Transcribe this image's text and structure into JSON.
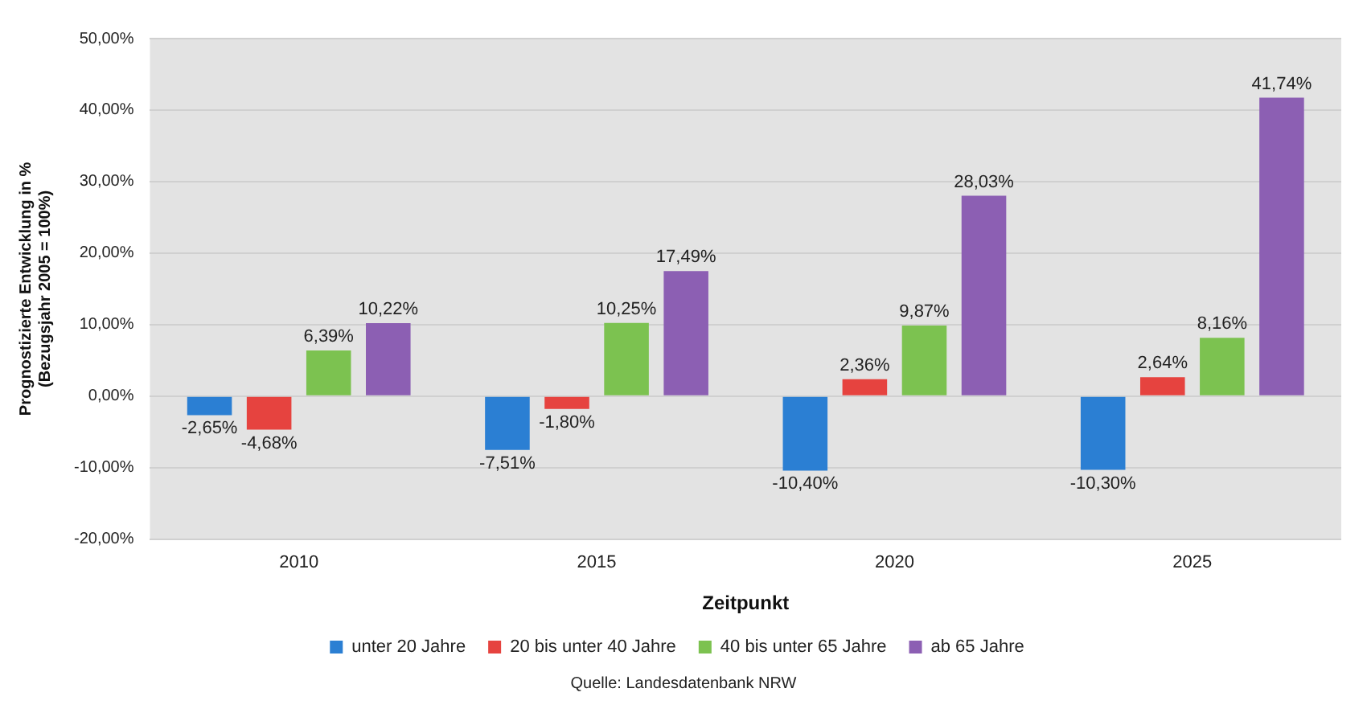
{
  "chart_data": {
    "type": "bar",
    "xlabel": "Zeitpunkt",
    "ylabel": "Prognostizierte Entwicklung in %\n(Bezugsjahr 2005 = 100%)",
    "categories": [
      "2010",
      "2015",
      "2020",
      "2025"
    ],
    "series": [
      {
        "name": "unter 20 Jahre",
        "color": "#2b7fd3",
        "values": [
          -2.65,
          -7.51,
          -10.4,
          -10.3
        ],
        "value_labels": [
          "-2,65%",
          "-7,51%",
          "-10,40%",
          "-10,30%"
        ]
      },
      {
        "name": "20 bis unter 40 Jahre",
        "color": "#e6433f",
        "values": [
          -4.68,
          -1.8,
          2.36,
          2.64
        ],
        "value_labels": [
          "-4,68%",
          "-1,80%",
          "2,36%",
          "2,64%"
        ]
      },
      {
        "name": "40 bis unter 65 Jahre",
        "color": "#7cc250",
        "values": [
          6.39,
          10.25,
          9.87,
          8.16
        ],
        "value_labels": [
          "6,39%",
          "10,25%",
          "9,87%",
          "8,16%"
        ]
      },
      {
        "name": "ab 65 Jahre",
        "color": "#8c5fb3",
        "values": [
          10.22,
          17.49,
          28.03,
          41.74
        ],
        "value_labels": [
          "10,22%",
          "17,49%",
          "28,03%",
          "41,74%"
        ]
      }
    ],
    "ylim": [
      -20,
      50
    ],
    "yticks": [
      {
        "value": -20,
        "label": "-20,00%"
      },
      {
        "value": -10,
        "label": "-10,00%"
      },
      {
        "value": 0,
        "label": "0,00%"
      },
      {
        "value": 10,
        "label": "10,00%"
      },
      {
        "value": 20,
        "label": "20,00%"
      },
      {
        "value": 30,
        "label": "30,00%"
      },
      {
        "value": 40,
        "label": "40,00%"
      },
      {
        "value": 50,
        "label": "50,00%"
      }
    ],
    "grid": "y",
    "legend": "bottom",
    "annotations": [
      "Quelle: Landesdatenbank NRW"
    ]
  }
}
